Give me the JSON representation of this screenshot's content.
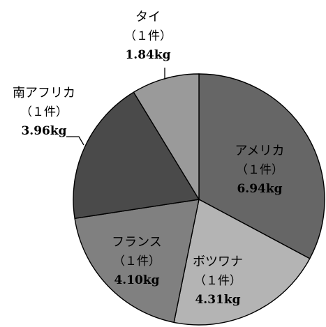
{
  "chart_data": {
    "type": "pie",
    "title": "",
    "start_angle_deg": 90,
    "direction": "clockwise",
    "label_mode": "mixed",
    "slices": [
      {
        "label": "アメリカ",
        "count": "（１件）",
        "value_label": "6.94kg",
        "value": 6.94,
        "color": "#666666",
        "label_position": "inside"
      },
      {
        "label": "ボツワナ",
        "count": "（１件）",
        "value_label": "4.31kg",
        "value": 4.31,
        "color": "#b4b4b4",
        "label_position": "inside"
      },
      {
        "label": "フランス",
        "count": "（１件）",
        "value_label": "4.10kg",
        "value": 4.1,
        "color": "#808080",
        "label_position": "inside"
      },
      {
        "label": "南アフリカ",
        "count": "（１件）",
        "value_label": "3.96kg",
        "value": 3.96,
        "color": "#4a4a4a",
        "label_position": "outside"
      },
      {
        "label": "タイ",
        "count": "（１件）",
        "value_label": "1.84kg",
        "value": 1.84,
        "color": "#9a9a9a",
        "label_position": "outside"
      }
    ]
  }
}
